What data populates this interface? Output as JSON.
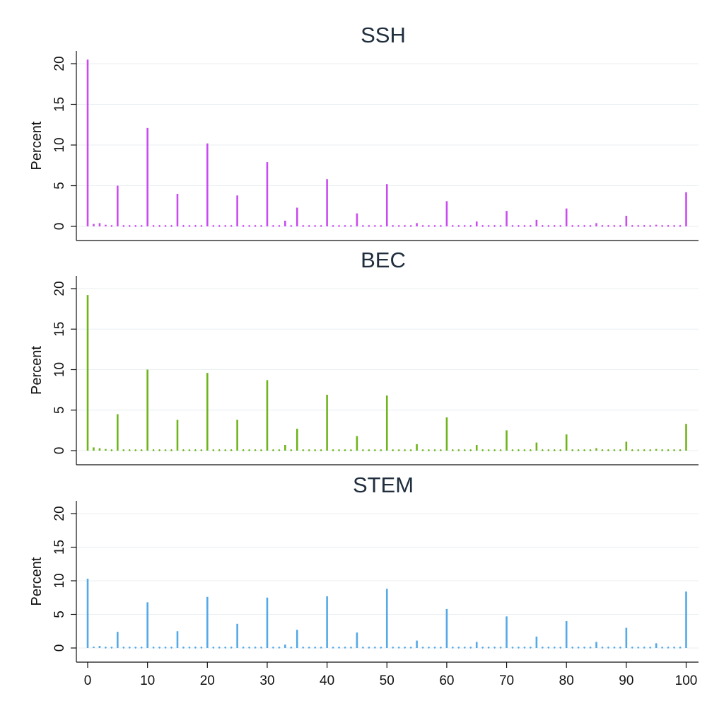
{
  "chart_data": [
    {
      "type": "bar",
      "title": "SSH",
      "ylabel": "Percent",
      "xlabel": "",
      "ylim": [
        0,
        22
      ],
      "xlim": [
        -2,
        101
      ],
      "yticks": [
        0,
        5,
        10,
        15,
        20
      ],
      "grid": true,
      "color": "#c94cf0",
      "points": [
        [
          0,
          20.5
        ],
        [
          1,
          0.3
        ],
        [
          2,
          0.4
        ],
        [
          3,
          0.2
        ],
        [
          5,
          5.0
        ],
        [
          10,
          12.1
        ],
        [
          15,
          4.0
        ],
        [
          20,
          10.2
        ],
        [
          25,
          3.8
        ],
        [
          30,
          7.9
        ],
        [
          33,
          0.7
        ],
        [
          35,
          2.3
        ],
        [
          40,
          5.8
        ],
        [
          45,
          1.6
        ],
        [
          50,
          5.2
        ],
        [
          55,
          0.4
        ],
        [
          60,
          3.1
        ],
        [
          65,
          0.6
        ],
        [
          70,
          1.9
        ],
        [
          75,
          0.8
        ],
        [
          80,
          2.2
        ],
        [
          85,
          0.4
        ],
        [
          90,
          1.3
        ],
        [
          95,
          0.2
        ],
        [
          100,
          4.2
        ]
      ]
    },
    {
      "type": "bar",
      "title": "BEC",
      "ylabel": "Percent",
      "xlabel": "",
      "ylim": [
        0,
        22
      ],
      "xlim": [
        -2,
        101
      ],
      "yticks": [
        0,
        5,
        10,
        15,
        20
      ],
      "grid": true,
      "color": "#6fb41c",
      "points": [
        [
          0,
          19.2
        ],
        [
          1,
          0.4
        ],
        [
          2,
          0.3
        ],
        [
          3,
          0.2
        ],
        [
          5,
          4.5
        ],
        [
          10,
          10.0
        ],
        [
          15,
          3.8
        ],
        [
          20,
          9.6
        ],
        [
          25,
          3.8
        ],
        [
          30,
          8.7
        ],
        [
          33,
          0.7
        ],
        [
          35,
          2.7
        ],
        [
          40,
          6.9
        ],
        [
          45,
          1.8
        ],
        [
          50,
          6.8
        ],
        [
          55,
          0.8
        ],
        [
          60,
          4.1
        ],
        [
          65,
          0.7
        ],
        [
          70,
          2.5
        ],
        [
          75,
          1.0
        ],
        [
          80,
          2.0
        ],
        [
          85,
          0.3
        ],
        [
          90,
          1.1
        ],
        [
          95,
          0.2
        ],
        [
          100,
          3.3
        ]
      ]
    },
    {
      "type": "bar",
      "title": "STEM",
      "ylabel": "Percent",
      "xlabel": "",
      "ylim": [
        0,
        22
      ],
      "xlim": [
        -2,
        101
      ],
      "yticks": [
        0,
        5,
        10,
        15,
        20
      ],
      "xticks": [
        0,
        10,
        20,
        30,
        40,
        50,
        60,
        70,
        80,
        90,
        100
      ],
      "grid": true,
      "color": "#54a9e6",
      "points": [
        [
          0,
          10.3
        ],
        [
          1,
          0.2
        ],
        [
          2,
          0.3
        ],
        [
          5,
          2.4
        ],
        [
          10,
          6.8
        ],
        [
          15,
          2.5
        ],
        [
          20,
          7.6
        ],
        [
          25,
          3.6
        ],
        [
          30,
          7.5
        ],
        [
          33,
          0.5
        ],
        [
          35,
          2.7
        ],
        [
          40,
          7.7
        ],
        [
          45,
          2.3
        ],
        [
          50,
          8.8
        ],
        [
          55,
          1.1
        ],
        [
          60,
          5.8
        ],
        [
          65,
          0.9
        ],
        [
          70,
          4.7
        ],
        [
          75,
          1.7
        ],
        [
          80,
          4.0
        ],
        [
          85,
          0.9
        ],
        [
          90,
          3.0
        ],
        [
          95,
          0.7
        ],
        [
          100,
          8.4
        ]
      ]
    }
  ]
}
